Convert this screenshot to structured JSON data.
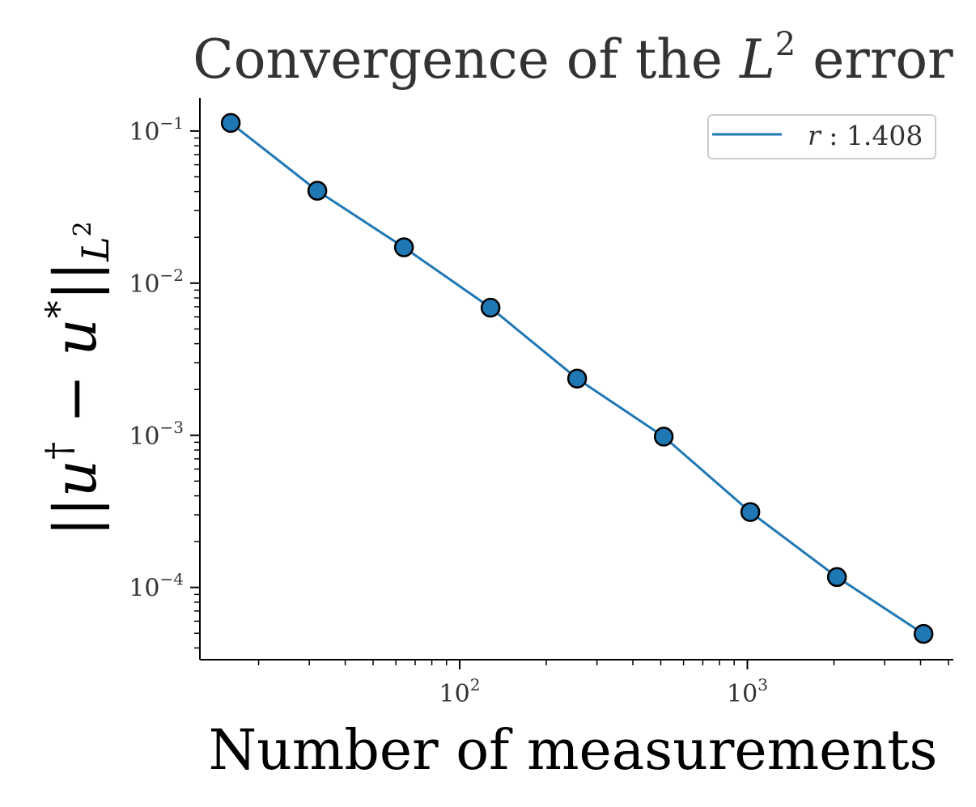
{
  "chart_data": {
    "type": "line",
    "title": "Convergence of the L² error",
    "title_parts": {
      "prefix": "Convergence of the ",
      "var": "L",
      "sup": "2",
      "suffix": " error"
    },
    "xlabel": "Number of measurements",
    "ylabel": "||u† − u*||L²",
    "ylabel_parts": {
      "open": "||",
      "u1": "u",
      "dagger": "†",
      "minus": " − ",
      "u2": "u",
      "star": "*",
      "close": "||",
      "sub": "L",
      "subsup": "2"
    },
    "x_scale": "log",
    "y_scale": "log",
    "xlim": [
      12.5,
      5200
    ],
    "ylim": [
      3.35e-05,
      0.165
    ],
    "x_ticks": [
      {
        "value": 100,
        "base": "10",
        "exp": "2"
      },
      {
        "value": 1000,
        "base": "10",
        "exp": "3"
      }
    ],
    "y_ticks": [
      {
        "value": 0.1,
        "base": "10",
        "exp": "−1"
      },
      {
        "value": 0.01,
        "base": "10",
        "exp": "−2"
      },
      {
        "value": 0.001,
        "base": "10",
        "exp": "−3"
      },
      {
        "value": 0.0001,
        "base": "10",
        "exp": "−4"
      }
    ],
    "grid": false,
    "legend": {
      "position": "top-right"
    },
    "series": [
      {
        "name": "r : 1.408",
        "name_parts": {
          "var": "r",
          "rest": " : 1.408"
        },
        "color": "#1f77b4",
        "marker": "circle",
        "marker_edge_color": "#000000",
        "x": [
          16,
          32,
          64,
          128,
          256,
          512,
          1024,
          2048,
          4096
        ],
        "y": [
          0.113,
          0.0405,
          0.0172,
          0.0069,
          0.00236,
          0.00098,
          0.000313,
          0.000117,
          4.95e-05
        ]
      }
    ]
  }
}
